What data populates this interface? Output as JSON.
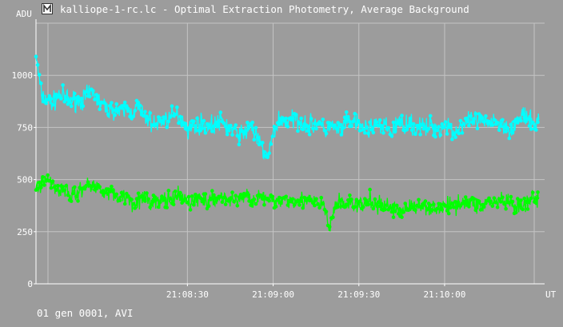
{
  "window": {
    "title": "kalliope-1-rc.lc - Optimal Extraction Photometry, Average Background",
    "icon": "app-icon"
  },
  "footer": {
    "status": "01 gen 0001, AVI"
  },
  "colors": {
    "background": "#9c9c9c",
    "grid": "#c4c4c4",
    "axis": "#ffffff",
    "series_cyan": "#00ffff",
    "series_green": "#00ff00"
  },
  "chart_data": {
    "type": "line",
    "ylabel": "ADU",
    "xlabel": "UT",
    "ylim": [
      0,
      1250
    ],
    "yticks": [
      0,
      250,
      500,
      750,
      1000
    ],
    "xlim": [
      "21:07:37",
      "21:10:35"
    ],
    "xticks": [
      "21:08:30",
      "21:09:00",
      "21:09:30",
      "21:10:00"
    ],
    "grid": true,
    "x_start": "21:07:37",
    "x_end": "21:10:33",
    "series": [
      {
        "color": "#00ffff",
        "noise": 45,
        "values": [
          1090,
          900,
          880,
          870,
          905,
          895,
          880,
          880,
          880,
          900,
          920,
          880,
          850,
          830,
          840,
          820,
          840,
          820,
          850,
          800,
          790,
          760,
          780,
          790,
          800,
          810,
          780,
          740,
          760,
          770,
          760,
          760,
          770,
          780,
          750,
          730,
          720,
          720,
          770,
          700,
          650,
          600,
          720,
          790,
          780,
          780,
          790,
          780,
          760,
          760,
          780,
          730,
          760,
          740,
          740,
          770,
          780,
          760,
          750,
          740,
          780,
          740,
          760,
          720,
          780,
          760,
          780,
          740,
          760,
          740,
          770,
          740,
          750,
          770,
          720,
          760,
          760,
          780,
          780,
          780,
          760,
          800,
          760,
          770,
          740,
          770,
          810,
          790,
          760,
          790
        ]
      },
      {
        "color": "#00ff00",
        "noise": 40,
        "values": [
          450,
          490,
          500,
          480,
          450,
          460,
          430,
          420,
          460,
          470,
          470,
          460,
          450,
          440,
          420,
          420,
          420,
          390,
          400,
          410,
          400,
          390,
          390,
          410,
          390,
          420,
          410,
          390,
          400,
          410,
          400,
          390,
          410,
          420,
          400,
          400,
          410,
          420,
          410,
          400,
          420,
          400,
          390,
          400,
          410,
          400,
          410,
          400,
          400,
          390,
          380,
          380,
          250,
          390,
          390,
          380,
          390,
          370,
          380,
          400,
          380,
          370,
          380,
          360,
          360,
          350,
          380,
          360,
          370,
          380,
          360,
          370,
          360,
          380,
          370,
          400,
          390,
          390,
          380,
          370,
          400,
          380,
          400,
          390,
          380,
          360,
          370,
          380,
          420,
          400
        ]
      }
    ]
  }
}
